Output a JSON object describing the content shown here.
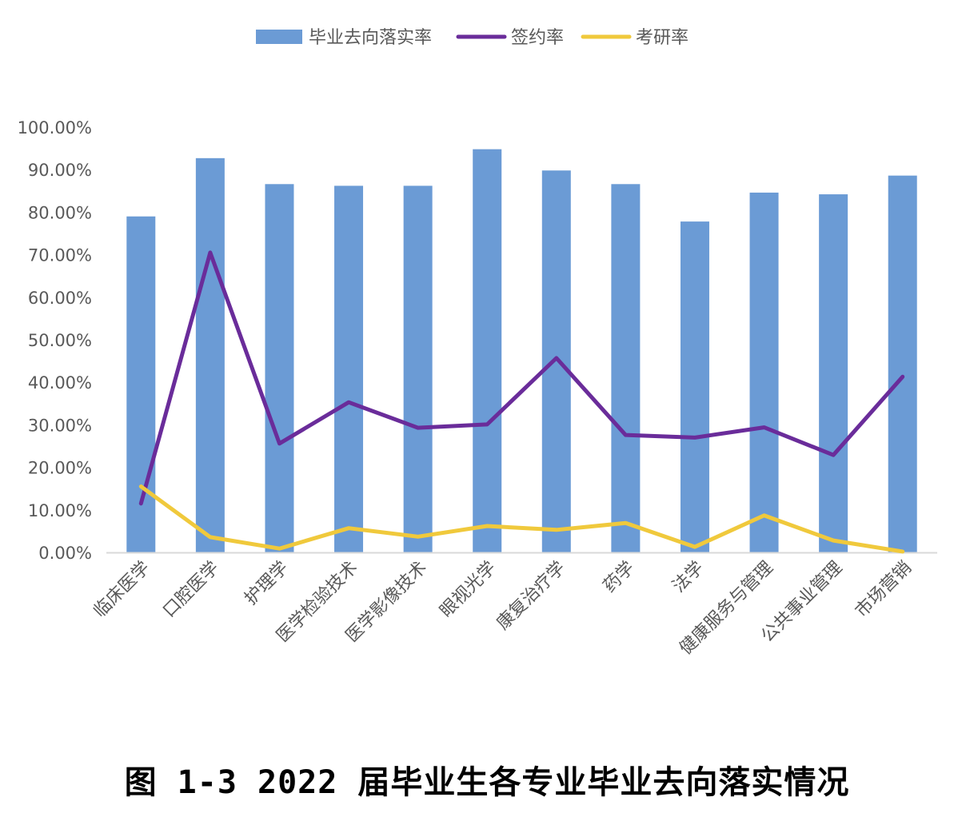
{
  "caption": "图 1-3 2022 届毕业生各专业毕业去向落实情况",
  "colors": {
    "bar": "#6b9bd5",
    "sign_line": "#6a2c9a",
    "exam_line": "#f0c93c",
    "axis": "#d9d9d9",
    "text": "#595959"
  },
  "chart_data": {
    "type": "bar",
    "title": "",
    "xlabel": "",
    "ylabel": "",
    "ylim": [
      0,
      100
    ],
    "y_tick_labels": [
      "0.00%",
      "10.00%",
      "20.00%",
      "30.00%",
      "40.00%",
      "50.00%",
      "60.00%",
      "70.00%",
      "80.00%",
      "90.00%",
      "100.00%"
    ],
    "grid": false,
    "legend_position": "top",
    "categories": [
      "临床医学",
      "口腔医学",
      "护理学",
      "医学检验技术",
      "医学影像技术",
      "眼视光学",
      "康复治疗学",
      "药学",
      "法学",
      "健康服务与管理",
      "公共事业管理",
      "市场营销"
    ],
    "series": [
      {
        "name": "毕业去向落实率",
        "type": "bar",
        "values": [
          79,
          92.7,
          86.6,
          86.2,
          86.2,
          94.8,
          89.8,
          86.6,
          77.8,
          84.6,
          84.2,
          88.6
        ]
      },
      {
        "name": "签约率",
        "type": "line",
        "values": [
          11.5,
          70.5,
          25.6,
          35.3,
          29.3,
          30.1,
          45.7,
          27.6,
          27.0,
          29.4,
          22.9,
          41.3
        ]
      },
      {
        "name": "考研率",
        "type": "line",
        "values": [
          15.5,
          3.6,
          0.9,
          5.7,
          3.7,
          6.2,
          5.3,
          6.9,
          1.3,
          8.7,
          2.8,
          0.2
        ]
      }
    ]
  }
}
